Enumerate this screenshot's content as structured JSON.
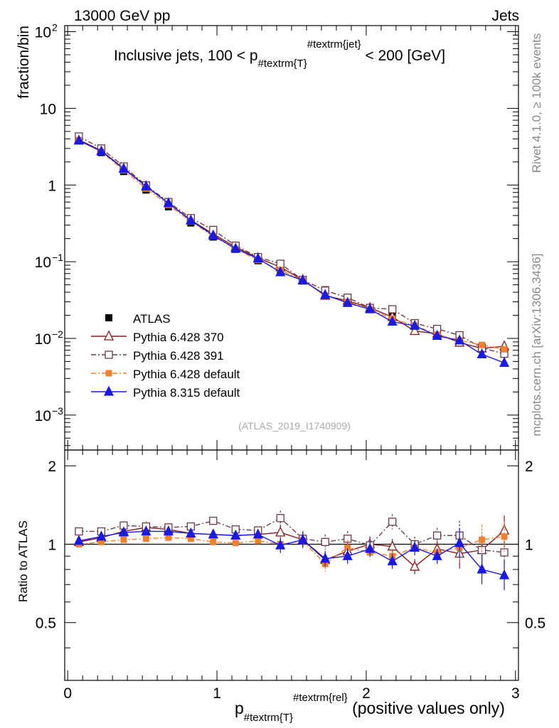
{
  "header": {
    "left": "13000 GeV pp",
    "right": "Jets",
    "side_rivet": "Rivet 4.1.0, ≥ 100k events",
    "side_mcplots": "mcplots.cern.ch [arXiv:1306.3436]"
  },
  "chart_data": {
    "type": "line",
    "title": "Inclusive jets, 100 < p",
    "title_sub": "#textrm{T}",
    "title_sup": "#textrm{jet}",
    "title_tail": " < 200 [GeV]",
    "analysis_tag": "(ATLAS_2019_I1740909)",
    "ylabel": "fraction/bin",
    "ratio_ylabel": "Ratio to ATLAS",
    "xlabel_main": "p",
    "xlabel_sub": "#textrm{T}",
    "xlabel_sup": "#textrm{rel}",
    "xlabel_tail": " (positive values only)",
    "xlim": [
      -0.02,
      3.02
    ],
    "ylim": [
      0.00035,
      120
    ],
    "yscale": "log",
    "ratio_ylim": [
      0.3,
      2.3
    ],
    "x_ticks": [
      0,
      1,
      2,
      3
    ],
    "x_tick_labels": [
      "0",
      "1",
      "2",
      "3"
    ],
    "y_ticks": [
      0.001,
      0.01,
      0.1,
      1,
      10,
      100
    ],
    "y_tick_labels": [
      {
        "base": "10",
        "exp": "−3"
      },
      {
        "base": "10",
        "exp": "−2"
      },
      {
        "base": "10",
        "exp": "−1"
      },
      {
        "base": "1",
        "exp": ""
      },
      {
        "base": "10",
        "exp": ""
      },
      {
        "base": "10",
        "exp": "2"
      }
    ],
    "ratio_ticks": [
      0.5,
      1,
      2
    ],
    "ratio_tick_labels": [
      "0.5",
      "1",
      "2"
    ],
    "x": [
      0.075,
      0.225,
      0.375,
      0.525,
      0.675,
      0.825,
      0.975,
      1.125,
      1.275,
      1.425,
      1.575,
      1.725,
      1.875,
      2.025,
      2.175,
      2.325,
      2.475,
      2.625,
      2.775,
      2.925
    ],
    "series": [
      {
        "name": "ATLAS",
        "color": "#000000",
        "style": "data",
        "values": [
          3.85,
          2.65,
          1.5,
          0.86,
          0.52,
          0.32,
          0.21,
          0.145,
          0.103,
          0.077,
          0.056,
          0.043,
          0.033,
          0.025,
          0.0195,
          0.015,
          0.012,
          0.0095,
          0.0078,
          0.0067
        ],
        "ratio": []
      },
      {
        "name": "Pythia 6.428 370",
        "color": "#8b1a1a",
        "style": "solid",
        "marker": "open-triangle",
        "values": [
          3.9,
          2.8,
          1.65,
          0.97,
          0.58,
          0.35,
          0.23,
          0.155,
          0.112,
          0.085,
          0.058,
          0.036,
          0.031,
          0.025,
          0.019,
          0.0125,
          0.0115,
          0.0088,
          0.0074,
          0.0079
        ],
        "ratio": [
          1.02,
          1.06,
          1.12,
          1.16,
          1.14,
          1.1,
          1.09,
          1.08,
          1.09,
          1.11,
          1.04,
          0.87,
          0.94,
          1.0,
          0.98,
          0.82,
          0.96,
          0.92,
          0.95,
          1.13
        ]
      },
      {
        "name": "Pythia 6.428 391",
        "color": "#6b3a4a",
        "style": "dashdot",
        "marker": "open-square",
        "values": [
          4.3,
          3.0,
          1.75,
          0.99,
          0.6,
          0.37,
          0.26,
          0.162,
          0.115,
          0.094,
          0.058,
          0.042,
          0.034,
          0.025,
          0.024,
          0.0158,
          0.0133,
          0.011,
          0.0075,
          0.0063
        ],
        "ratio": [
          1.12,
          1.12,
          1.18,
          1.17,
          1.16,
          1.17,
          1.23,
          1.14,
          1.13,
          1.26,
          1.05,
          1.02,
          1.05,
          0.99,
          1.22,
          1.0,
          1.08,
          1.08,
          0.95,
          0.93
        ]
      },
      {
        "name": "Pythia 6.428 default",
        "color": "#f08030",
        "style": "dashdot",
        "marker": "filled-square",
        "values": [
          3.85,
          2.72,
          1.56,
          0.9,
          0.55,
          0.335,
          0.215,
          0.146,
          0.105,
          0.078,
          0.057,
          0.036,
          0.03,
          0.024,
          0.018,
          0.0147,
          0.0112,
          0.0094,
          0.0082,
          0.0072
        ],
        "ratio": [
          1.0,
          1.02,
          1.04,
          1.05,
          1.06,
          1.05,
          1.02,
          1.01,
          1.03,
          1.0,
          1.03,
          0.84,
          0.97,
          0.93,
          0.9,
          0.97,
          0.93,
          0.97,
          1.04,
          1.07
        ]
      },
      {
        "name": "Pythia 8.315 default",
        "color": "#1a1ae6",
        "style": "solid",
        "marker": "filled-triangle",
        "values": [
          3.8,
          2.75,
          1.63,
          0.96,
          0.58,
          0.345,
          0.22,
          0.148,
          0.11,
          0.073,
          0.057,
          0.037,
          0.029,
          0.024,
          0.0165,
          0.0146,
          0.0108,
          0.0094,
          0.0062,
          0.0048
        ],
        "ratio": [
          1.03,
          1.07,
          1.11,
          1.12,
          1.12,
          1.1,
          1.09,
          1.08,
          1.09,
          0.99,
          1.04,
          0.88,
          0.9,
          0.96,
          0.86,
          0.97,
          0.9,
          1.01,
          0.8,
          0.76
        ]
      }
    ],
    "legend_position": "lower-left"
  }
}
